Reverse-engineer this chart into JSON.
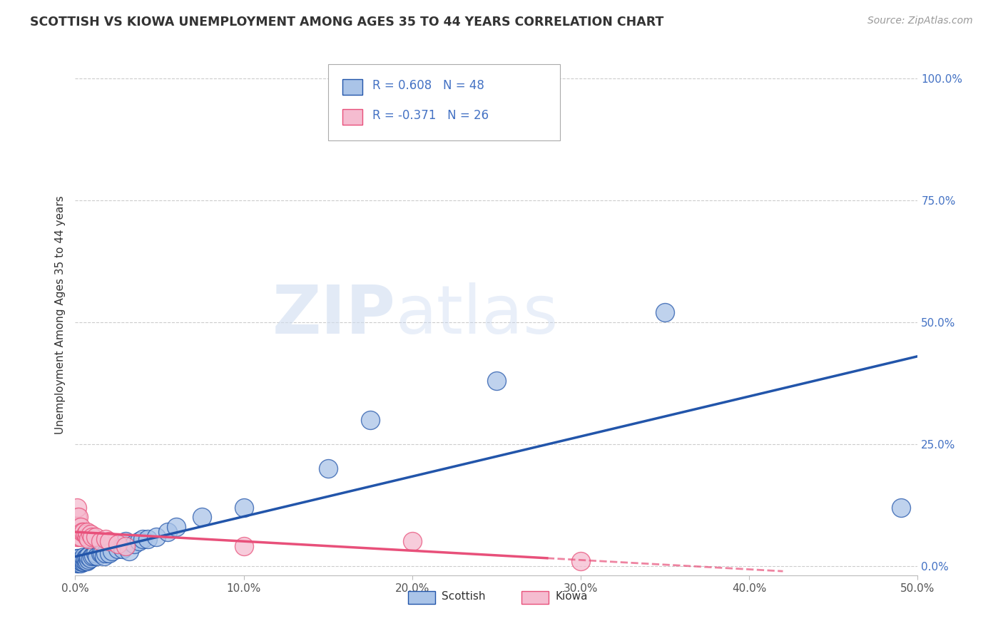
{
  "title": "SCOTTISH VS KIOWA UNEMPLOYMENT AMONG AGES 35 TO 44 YEARS CORRELATION CHART",
  "source": "Source: ZipAtlas.com",
  "ylabel": "Unemployment Among Ages 35 to 44 years",
  "xlim": [
    0.0,
    0.5
  ],
  "ylim": [
    -0.02,
    1.05
  ],
  "xticks": [
    0.0,
    0.1,
    0.2,
    0.3,
    0.4,
    0.5
  ],
  "yticks": [
    0.0,
    0.25,
    0.5,
    0.75,
    1.0
  ],
  "ytick_labels": [
    "0.0%",
    "25.0%",
    "50.0%",
    "75.0%",
    "100.0%"
  ],
  "xtick_labels": [
    "0.0%",
    "10.0%",
    "20.0%",
    "30.0%",
    "40.0%",
    "50.0%"
  ],
  "scottish_color": "#aac4e8",
  "kiowa_color": "#f5bcd0",
  "scottish_line_color": "#2255aa",
  "kiowa_line_color": "#e8507a",
  "scottish_R": 0.608,
  "scottish_N": 48,
  "kiowa_R": -0.371,
  "kiowa_N": 26,
  "scottish_x": [
    0.001,
    0.001,
    0.001,
    0.002,
    0.002,
    0.002,
    0.003,
    0.003,
    0.004,
    0.004,
    0.005,
    0.005,
    0.005,
    0.006,
    0.006,
    0.007,
    0.007,
    0.008,
    0.008,
    0.009,
    0.01,
    0.011,
    0.012,
    0.013,
    0.015,
    0.016,
    0.017,
    0.018,
    0.02,
    0.022,
    0.025,
    0.028,
    0.03,
    0.032,
    0.035,
    0.038,
    0.04,
    0.043,
    0.048,
    0.055,
    0.06,
    0.075,
    0.1,
    0.15,
    0.175,
    0.25,
    0.35,
    0.49
  ],
  "scottish_y": [
    0.005,
    0.01,
    0.015,
    0.005,
    0.01,
    0.015,
    0.005,
    0.01,
    0.008,
    0.012,
    0.008,
    0.012,
    0.018,
    0.01,
    0.015,
    0.01,
    0.018,
    0.012,
    0.02,
    0.015,
    0.02,
    0.022,
    0.025,
    0.02,
    0.025,
    0.025,
    0.02,
    0.025,
    0.025,
    0.03,
    0.035,
    0.035,
    0.05,
    0.03,
    0.045,
    0.05,
    0.055,
    0.055,
    0.06,
    0.07,
    0.08,
    0.1,
    0.12,
    0.2,
    0.3,
    0.38,
    0.52,
    0.12
  ],
  "kiowa_x": [
    0.001,
    0.001,
    0.001,
    0.001,
    0.002,
    0.002,
    0.002,
    0.003,
    0.003,
    0.004,
    0.005,
    0.006,
    0.007,
    0.007,
    0.008,
    0.009,
    0.01,
    0.012,
    0.015,
    0.018,
    0.02,
    0.025,
    0.03,
    0.1,
    0.2,
    0.3
  ],
  "kiowa_y": [
    0.06,
    0.08,
    0.1,
    0.12,
    0.06,
    0.08,
    0.1,
    0.06,
    0.08,
    0.07,
    0.07,
    0.065,
    0.06,
    0.07,
    0.055,
    0.065,
    0.06,
    0.06,
    0.05,
    0.055,
    0.05,
    0.045,
    0.04,
    0.04,
    0.05,
    0.01
  ],
  "watermark_zip": "ZIP",
  "watermark_atlas": "atlas",
  "background_color": "#ffffff",
  "grid_color": "#cccccc",
  "title_color": "#333333",
  "right_ytick_color": "#4472c4",
  "legend_text_color": "#4472c4"
}
